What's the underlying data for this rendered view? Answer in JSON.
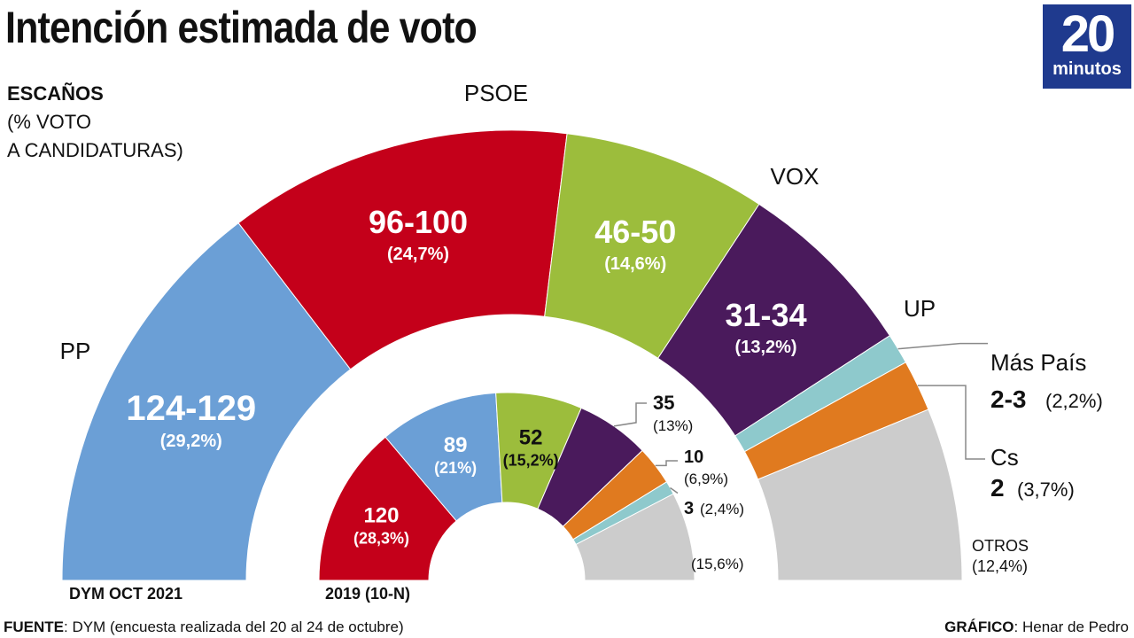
{
  "title": "Intención estimada de voto",
  "logo": {
    "number": "20",
    "word": "minutos"
  },
  "key": {
    "line1": "ESCAÑOS",
    "line2": "(% VOTO",
    "line3": "A CANDIDATURAS)"
  },
  "chart_data": [
    {
      "type": "pie",
      "subtype": "half-donut",
      "caption": "DYM OCT 2021",
      "slices": [
        {
          "party": "PP",
          "seats": "124-129",
          "pct": 29.2,
          "pct_label": "(29,2%)",
          "color": "#6b9fd6"
        },
        {
          "party": "PSOE",
          "seats": "96-100",
          "pct": 24.7,
          "pct_label": "(24,7%)",
          "color": "#c4001a"
        },
        {
          "party": "VOX",
          "seats": "46-50",
          "pct": 14.6,
          "pct_label": "(14,6%)",
          "color": "#9cbd3c"
        },
        {
          "party": "UP",
          "seats": "31-34",
          "pct": 13.2,
          "pct_label": "(13,2%)",
          "color": "#4a1a5c"
        },
        {
          "party": "Más País",
          "seats": "2-3",
          "pct": 2.2,
          "pct_label": "(2,2%)",
          "color": "#8ec9cc"
        },
        {
          "party": "Cs",
          "seats": "2",
          "pct": 3.7,
          "pct_label": "(3,7%)",
          "color": "#e07a1f"
        },
        {
          "party": "OTROS",
          "seats": "",
          "pct": 12.4,
          "pct_label": "(12,4%)",
          "color": "#cccccc"
        }
      ]
    },
    {
      "type": "pie",
      "subtype": "half-donut",
      "caption": "2019 (10-N)",
      "slices": [
        {
          "party": "PSOE",
          "seats": "120",
          "pct": 28.3,
          "pct_label": "(28,3%)",
          "color": "#c4001a"
        },
        {
          "party": "PP",
          "seats": "89",
          "pct": 21,
          "pct_label": "(21%)",
          "color": "#6b9fd6"
        },
        {
          "party": "VOX",
          "seats": "52",
          "pct": 15.2,
          "pct_label": "(15,2%)",
          "color": "#9cbd3c"
        },
        {
          "party": "UP",
          "seats": "35",
          "pct": 13,
          "pct_label": "(13%)",
          "color": "#4a1a5c"
        },
        {
          "party": "Cs",
          "seats": "10",
          "pct": 6.9,
          "pct_label": "(6,9%)",
          "color": "#e07a1f"
        },
        {
          "party": "Más País",
          "seats": "3",
          "pct": 2.4,
          "pct_label": "(2,4%)",
          "color": "#8ec9cc"
        },
        {
          "party": "OTROS",
          "seats": "",
          "pct": 15.6,
          "pct_label": "(15,6%)",
          "color": "#cccccc"
        }
      ]
    }
  ],
  "footer": {
    "source_label": "FUENTE",
    "source_text": ": DYM (encuesta realizada del 20 al 24 de octubre)",
    "credit_label": "GRÁFICO",
    "credit_text": ": Henar de Pedro"
  }
}
